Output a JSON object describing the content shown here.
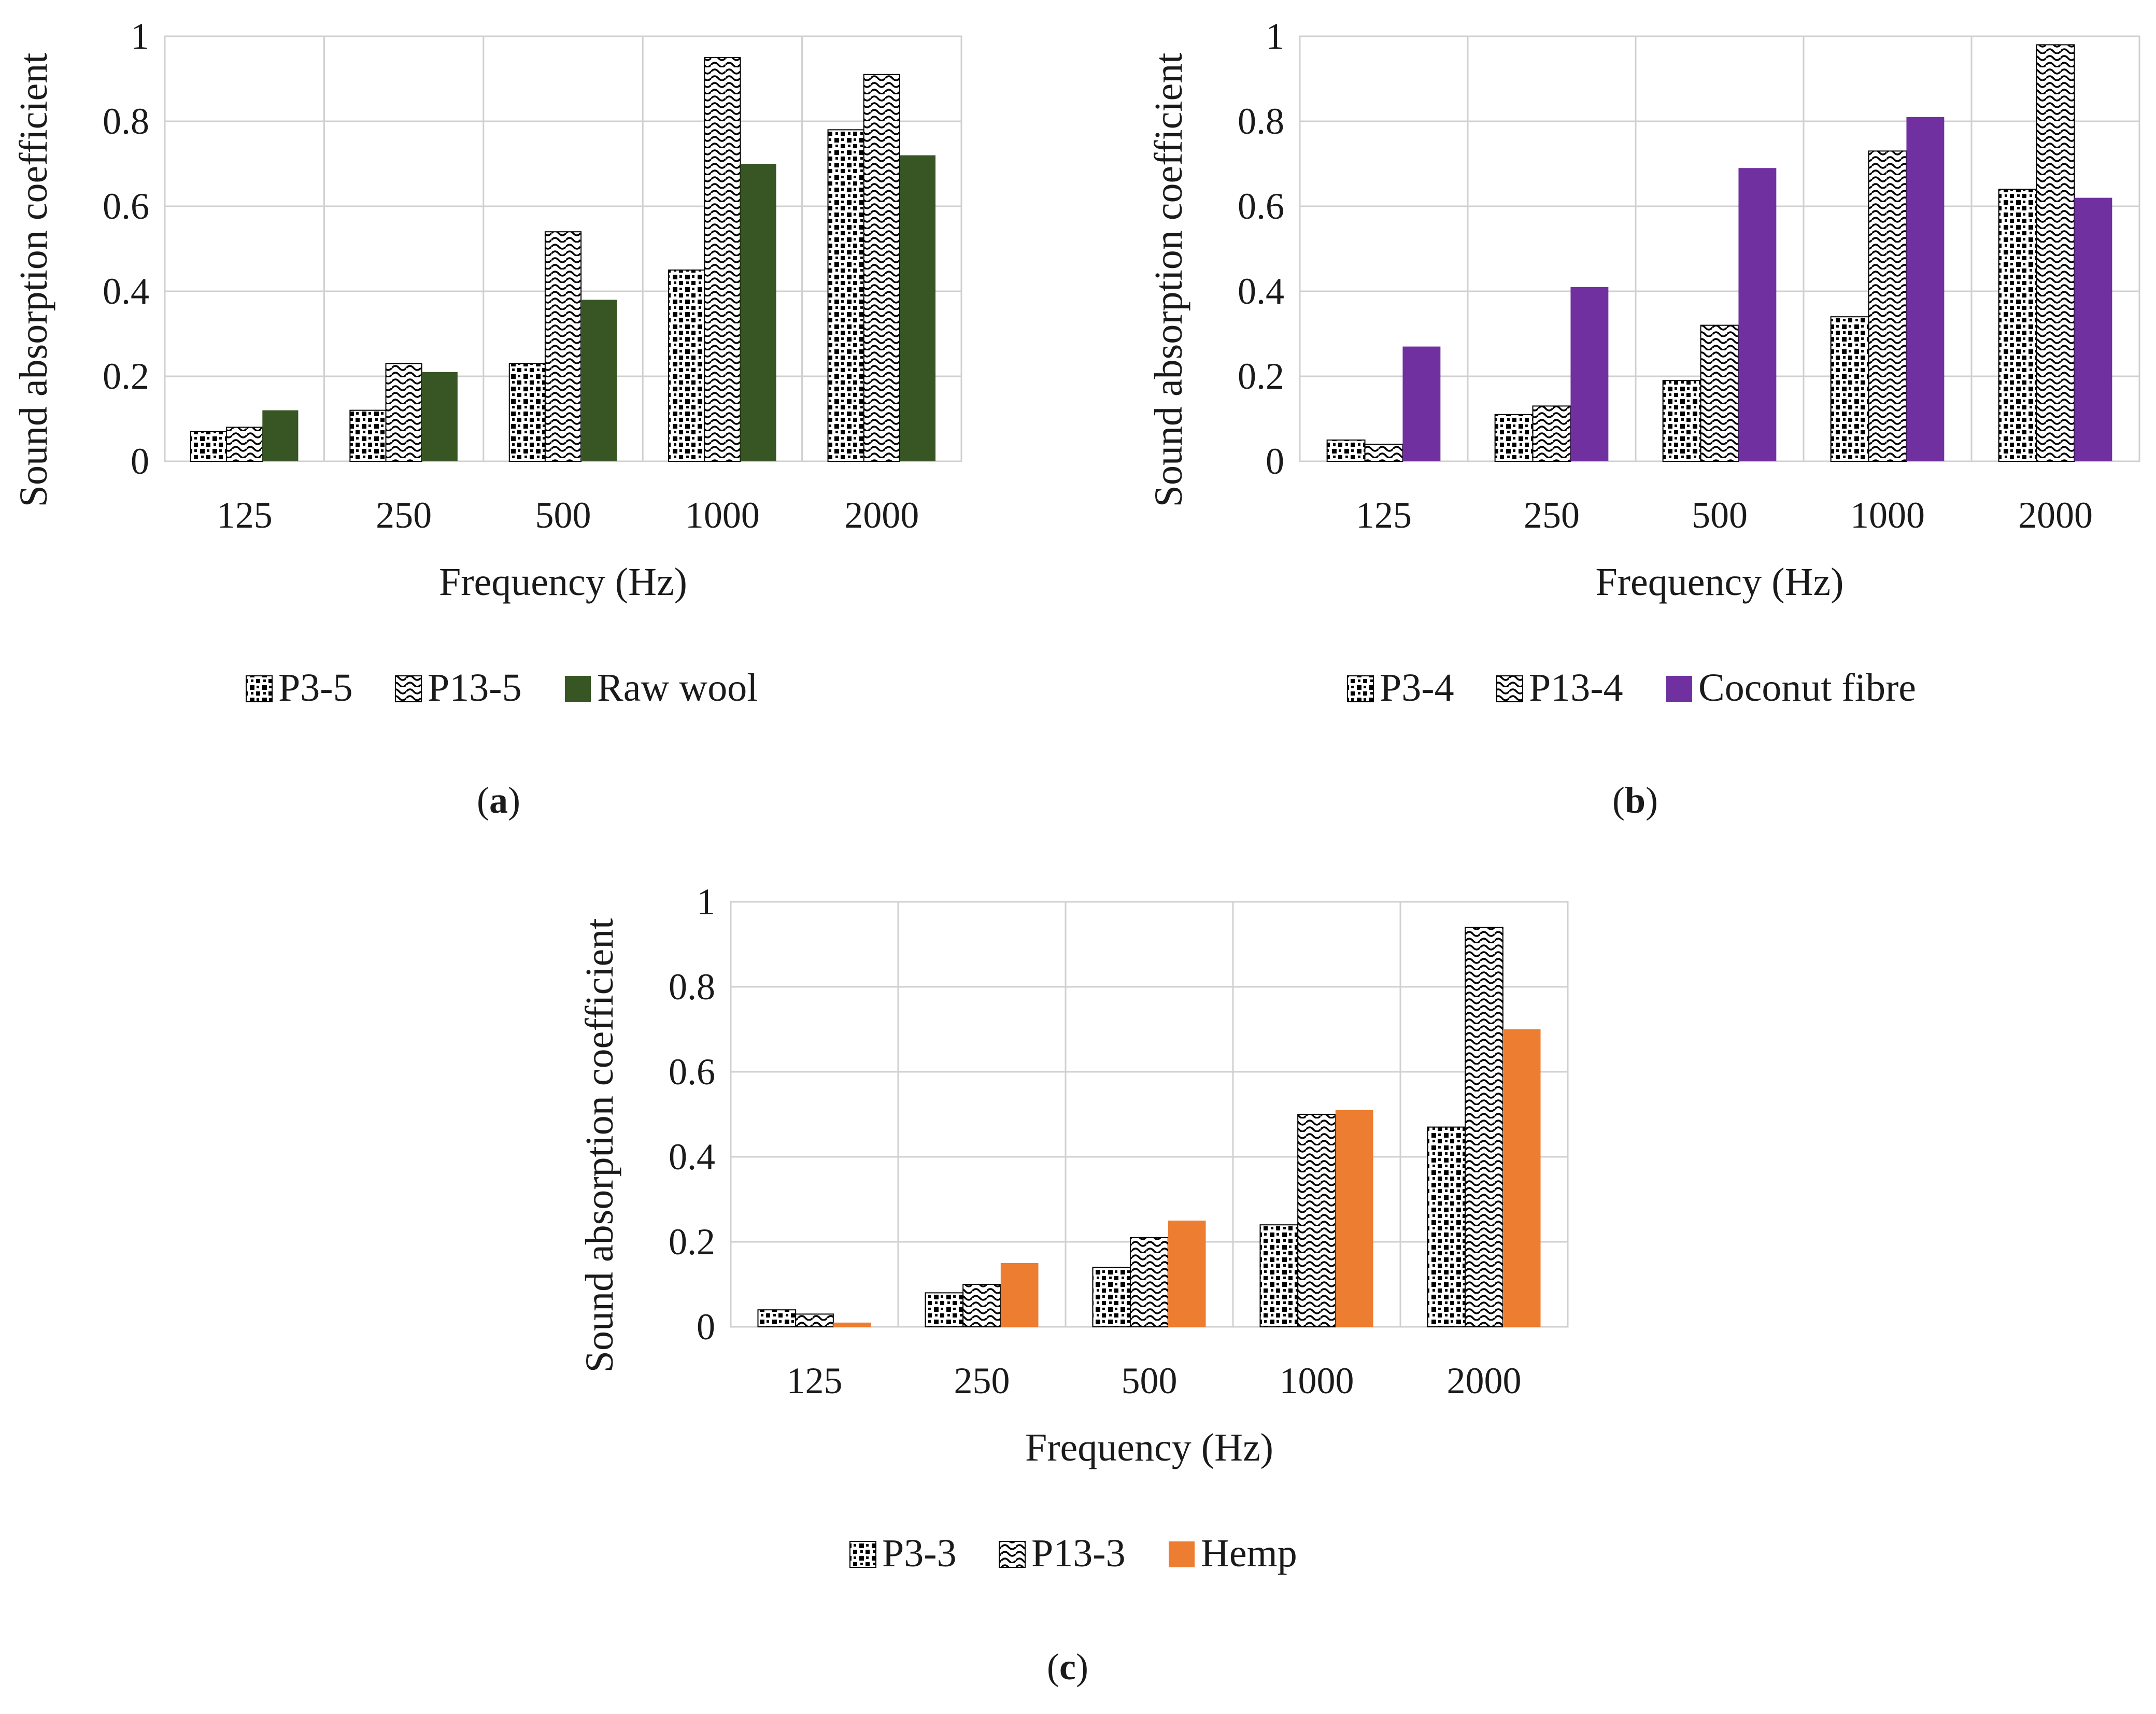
{
  "colors": {
    "raw_wool": "#375623",
    "coconut_fibre": "#7030A0",
    "hemp": "#ED7D31",
    "pattern_ink": "#000000",
    "grid": "#d0d0d0"
  },
  "chart_data": [
    {
      "type": "bar",
      "panel_label": "(a)",
      "title": "",
      "xlabel": "Frequency (Hz)",
      "ylabel": "Sound absorption coefficient",
      "ylim": [
        0,
        1
      ],
      "yticks": [
        "0",
        "0.2",
        "0.4",
        "0.6",
        "0.8",
        "1"
      ],
      "categories": [
        "125",
        "250",
        "500",
        "1000",
        "2000"
      ],
      "legend_position": "bottom",
      "grid": true,
      "series": [
        {
          "name": "P3-5",
          "style": "dots",
          "values": [
            0.07,
            0.12,
            0.23,
            0.45,
            0.78
          ]
        },
        {
          "name": "P13-5",
          "style": "waves",
          "values": [
            0.08,
            0.23,
            0.54,
            0.95,
            0.91
          ]
        },
        {
          "name": "Raw wool",
          "style": "solid",
          "color_key": "raw_wool",
          "values": [
            0.12,
            0.21,
            0.38,
            0.7,
            0.72
          ]
        }
      ]
    },
    {
      "type": "bar",
      "panel_label": "(b)",
      "title": "",
      "xlabel": "Frequency (Hz)",
      "ylabel": "Sound absorption coefficient",
      "ylim": [
        0,
        1
      ],
      "yticks": [
        "0",
        "0.2",
        "0.4",
        "0.6",
        "0.8",
        "1"
      ],
      "categories": [
        "125",
        "250",
        "500",
        "1000",
        "2000"
      ],
      "legend_position": "bottom",
      "grid": true,
      "series": [
        {
          "name": "P3-4",
          "style": "dots",
          "values": [
            0.05,
            0.11,
            0.19,
            0.34,
            0.64
          ]
        },
        {
          "name": "P13-4",
          "style": "waves",
          "values": [
            0.04,
            0.13,
            0.32,
            0.73,
            0.98
          ]
        },
        {
          "name": "Coconut fibre",
          "style": "solid",
          "color_key": "coconut_fibre",
          "values": [
            0.27,
            0.41,
            0.69,
            0.81,
            0.62
          ]
        }
      ]
    },
    {
      "type": "bar",
      "panel_label": "(c)",
      "title": "",
      "xlabel": "Frequency (Hz)",
      "ylabel": "Sound absorption coefficient",
      "ylim": [
        0,
        1
      ],
      "yticks": [
        "0",
        "0.2",
        "0.4",
        "0.6",
        "0.8",
        "1"
      ],
      "categories": [
        "125",
        "250",
        "500",
        "1000",
        "2000"
      ],
      "legend_position": "bottom",
      "grid": true,
      "series": [
        {
          "name": "P3-3",
          "style": "dots",
          "values": [
            0.04,
            0.08,
            0.14,
            0.24,
            0.47
          ]
        },
        {
          "name": "P13-3",
          "style": "waves",
          "values": [
            0.03,
            0.1,
            0.21,
            0.5,
            0.94
          ]
        },
        {
          "name": "Hemp",
          "style": "solid",
          "color_key": "hemp",
          "values": [
            0.01,
            0.15,
            0.25,
            0.51,
            0.7
          ]
        }
      ]
    }
  ]
}
